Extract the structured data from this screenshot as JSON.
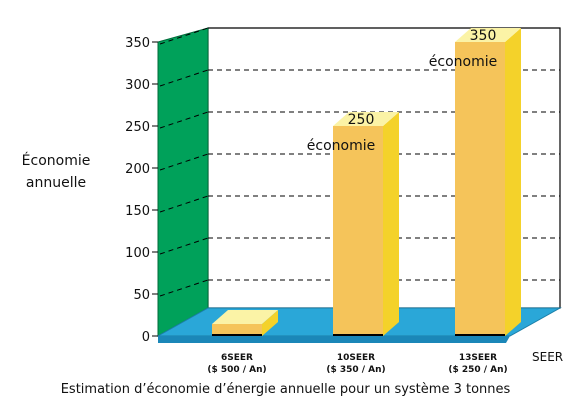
{
  "chart_data": {
    "type": "bar",
    "title": "",
    "caption": "Estimation d’économie d’énergie annuelle pour un système 3 tonnes",
    "ylabel": "Économie annuelle",
    "xlabel": "SEER",
    "ylim": [
      0,
      350
    ],
    "yticks": [
      0,
      50,
      100,
      150,
      200,
      250,
      300,
      350
    ],
    "grid": true,
    "categories": [
      {
        "line1": "6SEER",
        "line2": "($ 500 / An)"
      },
      {
        "line1": "10SEER",
        "line2": "($ 350 / An)"
      },
      {
        "line1": "13SEER",
        "line2": "($ 250 / An)"
      }
    ],
    "values": [
      0,
      250,
      350
    ],
    "data_labels": [
      "",
      "250",
      "350"
    ],
    "bar_annotations": [
      "",
      "économie",
      "économie"
    ],
    "colors": {
      "wall": "#00a15a",
      "floor": "#2aa7d8",
      "bar_front": "#f5c45a",
      "bar_side": "#f4d22a",
      "bar_top": "#fbf3a6",
      "grid": "#000000"
    }
  }
}
